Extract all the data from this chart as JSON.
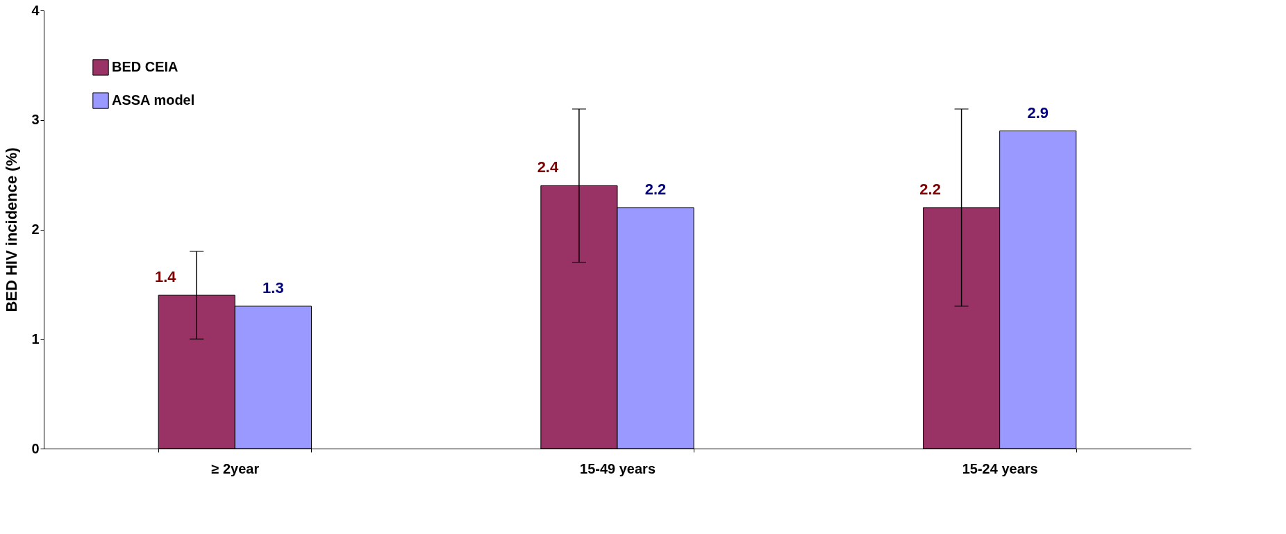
{
  "chart_data": {
    "type": "bar",
    "ylabel": "BED HIV incidence (%)",
    "categories": [
      "≥ 2year",
      "15-49 years",
      "15-24 years"
    ],
    "series": [
      {
        "name": "BED CEIA",
        "color": "#993366",
        "values": [
          1.4,
          2.4,
          2.2
        ],
        "errors": [
          [
            1.0,
            1.8
          ],
          [
            1.7,
            3.1
          ],
          [
            1.3,
            3.1
          ]
        ]
      },
      {
        "name": "ASSA model",
        "color": "#9999ff",
        "values": [
          1.3,
          2.2,
          2.9
        ]
      }
    ],
    "ylim": [
      0,
      4
    ],
    "yticks": [
      0,
      1,
      2,
      3,
      4
    ],
    "grid": false,
    "legend": "top left",
    "data_labels": true
  }
}
